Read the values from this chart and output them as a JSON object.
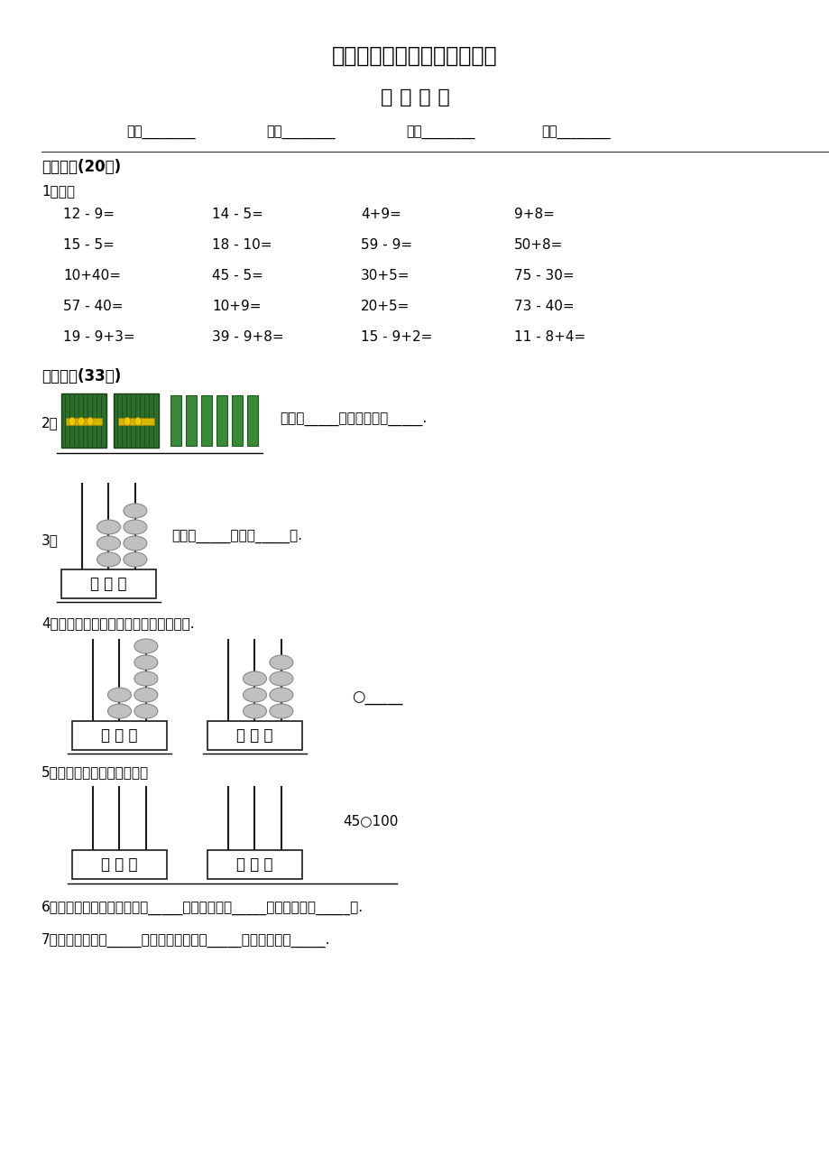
{
  "title1": "人教版一年级下学期期中测试",
  "title2": "数 学 试 卷",
  "info_items": [
    "学校________",
    "班级________",
    "姓名________",
    "成绩________"
  ],
  "section1": "一、口算(20分)",
  "item1_label": "1．口算",
  "math_rows": [
    [
      "12 - 9=",
      "14 - 5=",
      "4+9=",
      "9+8="
    ],
    [
      "15 - 5=",
      "18 - 10=",
      "59 - 9=",
      "50+8="
    ],
    [
      "10+40=",
      "45 - 5=",
      "30+5=",
      "75 - 30="
    ],
    [
      "57 - 40=",
      "10+9=",
      "20+5=",
      "73 - 40="
    ],
    [
      "19 - 9+3=",
      "39 - 9+8=",
      "15 - 9+2=",
      "11 - 8+4="
    ]
  ],
  "section2": "二、填空(33分)",
  "item2_label": "2．",
  "item2_text": "个十和_____个一合起来是_____.",
  "item3_label": "3．",
  "item3_text": "里面有_____个十和_____一.",
  "item4_label": "4．根据计数器先写出得数，再比较大小.",
  "item4_blank": "○_____",
  "item5_label": "5．在计数器上先画出珠子，",
  "item5_text": "45○100",
  "item6_text": "6．一个数从右边起第一位是_____位，第二位是_____位，第三位是_____位.",
  "item7_text": "7．最大的两位是_____，最大的一位数是_____，它们的差是_____.",
  "bg_color": "#ffffff",
  "bead_fill": "#c0c0c0",
  "bead_edge": "#888888",
  "rod_color": "#1a1a1a",
  "box_color": "#1a1a1a",
  "green_dark": "#2a6e2a",
  "green_mid": "#3a8a3a",
  "yellow_band": "#d4b800"
}
